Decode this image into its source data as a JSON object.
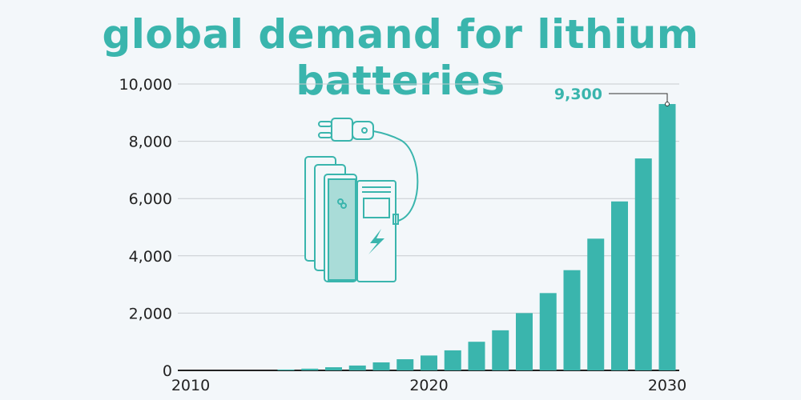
{
  "chart_data": {
    "type": "bar",
    "title": "global demand for lithium batteries",
    "xlabel": "",
    "ylabel": "",
    "categories": [
      "2010",
      "2011",
      "2012",
      "2013",
      "2014",
      "2015",
      "2016",
      "2017",
      "2018",
      "2019",
      "2020",
      "2021",
      "2022",
      "2023",
      "2024",
      "2025",
      "2026",
      "2027",
      "2028",
      "2029",
      "2030"
    ],
    "values": [
      0,
      0,
      0,
      0,
      30,
      60,
      110,
      170,
      280,
      390,
      520,
      700,
      1000,
      1400,
      2000,
      2700,
      3500,
      4600,
      5900,
      7400,
      9300
    ],
    "x_tick_labels": [
      "2010",
      "2020",
      "2030"
    ],
    "y_tick_labels": [
      "0",
      "2,000",
      "4,000",
      "6,000",
      "8,000",
      "10,000"
    ],
    "ylim": [
      0,
      10000
    ],
    "grid": true,
    "annotation": {
      "category": "2030",
      "text": "9,300"
    },
    "colors": {
      "bar": "#3ab5ad",
      "title": "#3ab5ad",
      "grid": "#c8ccd0",
      "background": "#f3f7fa"
    },
    "illustration": "battery-charger-plug-icon"
  }
}
